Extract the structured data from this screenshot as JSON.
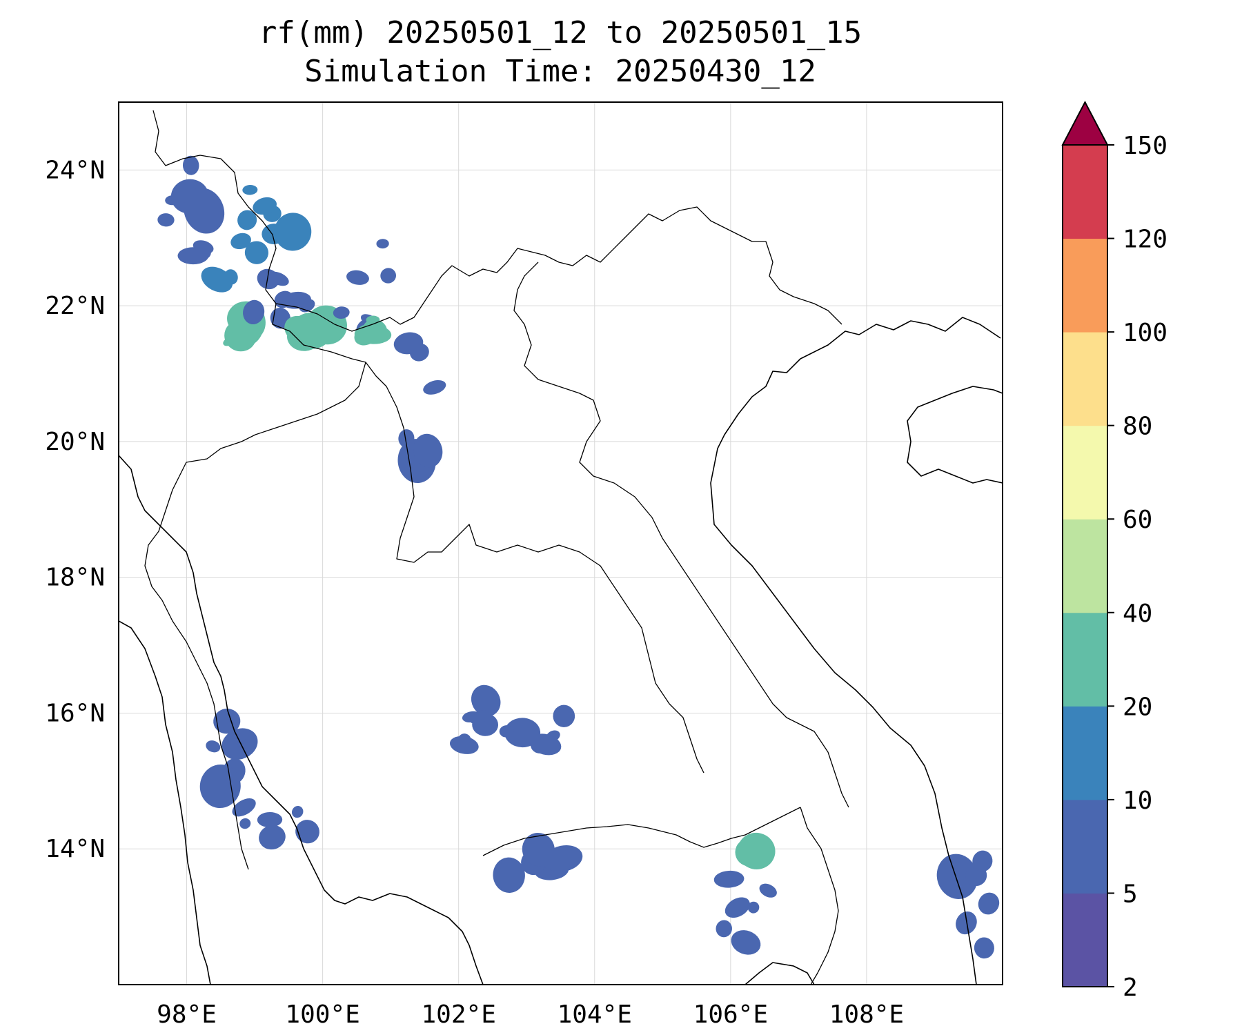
{
  "title": {
    "line1": "rf(mm) 20250501_12 to 20250501_15",
    "line2": "Simulation Time: 20250430_12"
  },
  "map": {
    "lon_range": [
      97,
      110
    ],
    "lat_range": [
      12,
      25
    ],
    "lon_ticks": [
      98,
      100,
      102,
      104,
      106,
      108
    ],
    "lat_ticks": [
      14,
      16,
      18,
      20,
      22,
      24
    ],
    "lon_tick_labels": [
      "98°E",
      "100°E",
      "102°E",
      "104°E",
      "106°E",
      "108°E"
    ],
    "lat_tick_labels": [
      "14°N",
      "16°N",
      "18°N",
      "20°N",
      "22°N",
      "24°N"
    ],
    "grid": true
  },
  "colorbar": {
    "levels": [
      2,
      5,
      10,
      20,
      40,
      60,
      80,
      100,
      120,
      150
    ],
    "level_labels": [
      "2",
      "5",
      "10",
      "20",
      "40",
      "60",
      "80",
      "100",
      "120",
      "150"
    ],
    "colors": [
      "#5b53a4",
      "#4a67b0",
      "#3a83bb",
      "#62bea6",
      "#bde4a0",
      "#f4f9ad",
      "#fddf8c",
      "#f99c5a",
      "#d43d4f"
    ],
    "extend_color": "#9d0142",
    "extend": "max"
  },
  "chart_data": {
    "type": "heatmap",
    "variable": "rf(mm)",
    "regions": [
      {
        "lon": 98.2,
        "lat": 23.6,
        "rx": 0.55,
        "ry": 1.0,
        "value": 5
      },
      {
        "lon": 98.9,
        "lat": 22.9,
        "rx": 0.7,
        "ry": 1.0,
        "value": 10
      },
      {
        "lon": 98.6,
        "lat": 21.8,
        "rx": 0.4,
        "ry": 0.35,
        "value": 20
      },
      {
        "lon": 99.6,
        "lat": 22.1,
        "rx": 0.75,
        "ry": 0.75,
        "value": 5
      },
      {
        "lon": 99.9,
        "lat": 21.65,
        "rx": 0.25,
        "ry": 0.18,
        "value": 20
      },
      {
        "lon": 100.6,
        "lat": 22.4,
        "rx": 0.45,
        "ry": 0.9,
        "value": 5
      },
      {
        "lon": 100.65,
        "lat": 21.7,
        "rx": 0.15,
        "ry": 0.2,
        "value": 20
      },
      {
        "lon": 101.35,
        "lat": 20.5,
        "rx": 0.35,
        "ry": 1.0,
        "value": 5
      },
      {
        "lon": 98.6,
        "lat": 15.3,
        "rx": 0.3,
        "ry": 0.8,
        "value": 5
      },
      {
        "lon": 99.4,
        "lat": 14.4,
        "rx": 0.8,
        "ry": 0.5,
        "value": 5
      },
      {
        "lon": 102.2,
        "lat": 15.9,
        "rx": 0.4,
        "ry": 0.4,
        "value": 5
      },
      {
        "lon": 103.2,
        "lat": 15.8,
        "rx": 0.55,
        "ry": 0.3,
        "value": 5
      },
      {
        "lon": 103.1,
        "lat": 13.8,
        "rx": 0.5,
        "ry": 0.3,
        "value": 5
      },
      {
        "lon": 106.2,
        "lat": 13.3,
        "rx": 0.45,
        "ry": 0.8,
        "value": 5
      },
      {
        "lon": 106.3,
        "lat": 13.95,
        "rx": 0.15,
        "ry": 0.1,
        "value": 20
      },
      {
        "lon": 109.6,
        "lat": 13.2,
        "rx": 0.35,
        "ry": 0.9,
        "value": 5
      }
    ]
  }
}
